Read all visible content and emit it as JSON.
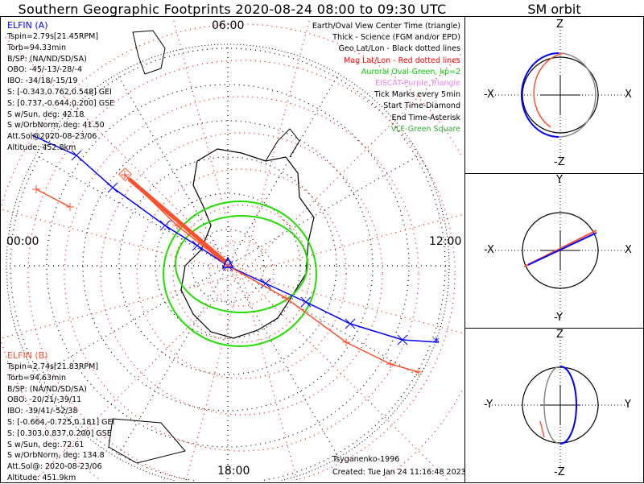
{
  "title": "Southern Geographic Footprints 2020-08-24 08:00 to 09:30 UTC",
  "sm_title": "SM orbit",
  "time_labels": {
    "top": "06:00",
    "left": "00:00",
    "right": "12:00",
    "bottom": "18:00"
  },
  "elfin_a": {
    "name": "ELFIN (A)",
    "color": "#0000ff",
    "lines": [
      "Tspin=2.79s[21.45RPM]",
      "Torb=94.33min",
      "B/SP: (NA/ND/SD/SA)",
      "OBO: -45/-13/-28/-4",
      "IBO: -34/18/-15/19",
      "S: [-0.343,0.762,0.548] GEI",
      "S: [0.737,-0.644,0.200] GSE",
      "S w/Sun, deg: 42.18",
      "S w/OrbNorm, deg: 41.50",
      "Att.Sol@2020-08-23/06",
      "Altitude: 452.8km"
    ]
  },
  "elfin_b": {
    "name": "ELFIN (B)",
    "color": "#ff5030",
    "lines": [
      "Tspin=2.74s[21.83RPM]",
      "Torb=94.63min",
      "B/SP: (NA/ND/SD/SA)",
      "OBO: -20/21/-39/11",
      "IBO: -39/41/-52/38",
      "S: [-0.664,-0.725,0.181] GEI",
      "S: [0.303,0.837,0.200] GSE",
      "S w/Sun, deg: 72.61",
      "S w/OrbNorm, deg: 134.8",
      "Att.Sol@: 2020-08-23/06",
      "Altitude: 451.9km"
    ]
  },
  "legend": [
    {
      "text": "Earth/Oval View Center Time (triangle)",
      "color": "#000000"
    },
    {
      "text": "Thick - Science (FGM and/or EPD)",
      "color": "#000000"
    },
    {
      "text": "Geo Lat/Lon - Black dotted lines",
      "color": "#000000"
    },
    {
      "text": "Mag Lat/Lon - Red dotted lines",
      "color": "#ff0000"
    },
    {
      "text": "Auroral Oval-Green, kp=2",
      "color": "#00cc00"
    },
    {
      "text": "EISCAT-Purple Triangle",
      "color": "#ee82ee"
    },
    {
      "text": "Tick Marks every 5min",
      "color": "#000000"
    },
    {
      "text": "Start Time-Diamond",
      "color": "#000000"
    },
    {
      "text": "End Time-Asterisk",
      "color": "#000000"
    },
    {
      "text": "VLF-Green Square",
      "color": "#33aa33"
    }
  ],
  "footer": {
    "model": "Tsyganenko-1996",
    "created": "Created: Tue Jan 24 11:16:48 2023"
  },
  "sm_panels": [
    {
      "top": "Z",
      "bottom": "-Z",
      "left": "-X",
      "right": "X"
    },
    {
      "top": "Y",
      "bottom": "-Y",
      "left": "-X",
      "right": "X"
    },
    {
      "top": "Z",
      "bottom": "-Z",
      "left": "-Y",
      "right": "Y"
    }
  ]
}
